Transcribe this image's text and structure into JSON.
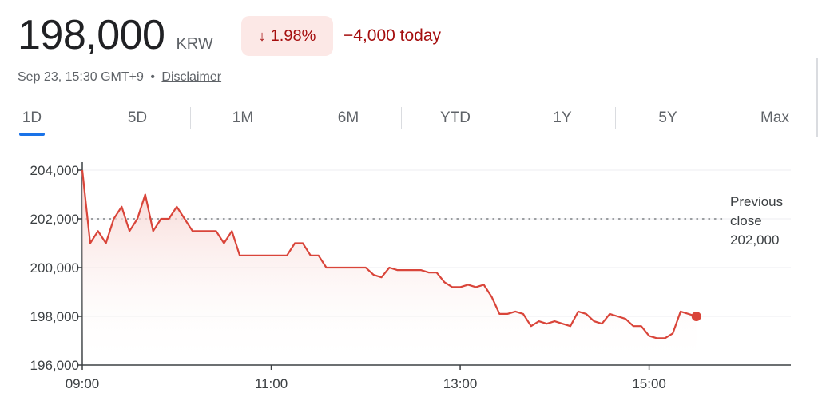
{
  "quote": {
    "price": "198,000",
    "currency": "KRW",
    "change_percent": "1.98%",
    "change_arrow": "↓",
    "change_today": "−4,000 today",
    "timestamp": "Sep 23, 15:30 GMT+9",
    "separator": "•",
    "disclaimer": "Disclaimer"
  },
  "colors": {
    "line": "#d9453a",
    "fill_top": "#f6cfcb",
    "negative_text": "#a50e0e",
    "negative_bg": "#fce8e6",
    "accent": "#1a73e8"
  },
  "tabs": [
    {
      "label": "1D",
      "active": true
    },
    {
      "label": "5D",
      "active": false
    },
    {
      "label": "1M",
      "active": false
    },
    {
      "label": "6M",
      "active": false
    },
    {
      "label": "YTD",
      "active": false
    },
    {
      "label": "1Y",
      "active": false
    },
    {
      "label": "5Y",
      "active": false
    },
    {
      "label": "Max",
      "active": false
    }
  ],
  "chart_data": {
    "type": "line",
    "ylim": [
      196000,
      204000
    ],
    "y_ticks": [
      204000,
      202000,
      200000,
      198000,
      196000
    ],
    "y_tick_labels": [
      "204,000",
      "202,000",
      "200,000",
      "198,000",
      "196,000"
    ],
    "x_range": [
      "09:00",
      "16:30"
    ],
    "x_ticks": [
      "09:00",
      "11:00",
      "13:00",
      "15:00"
    ],
    "previous_close": {
      "value": 202000,
      "label_lines": [
        "Previous",
        "close",
        "202,000"
      ]
    },
    "series": [
      {
        "x": [
          "09:00",
          "09:05",
          "09:10",
          "09:15",
          "09:20",
          "09:25",
          "09:30",
          "09:35",
          "09:40",
          "09:45",
          "09:50",
          "09:55",
          "10:00",
          "10:05",
          "10:10",
          "10:15",
          "10:20",
          "10:25",
          "10:30",
          "10:35",
          "10:40",
          "10:45",
          "10:50",
          "10:55",
          "11:00",
          "11:05",
          "11:10",
          "11:15",
          "11:20",
          "11:25",
          "11:30",
          "11:35",
          "11:40",
          "11:45",
          "11:50",
          "11:55",
          "12:00",
          "12:05",
          "12:10",
          "12:15",
          "12:20",
          "12:25",
          "12:30",
          "12:35",
          "12:40",
          "12:45",
          "12:50",
          "12:55",
          "13:00",
          "13:05",
          "13:10",
          "13:15",
          "13:20",
          "13:25",
          "13:30",
          "13:35",
          "13:40",
          "13:45",
          "13:50",
          "13:55",
          "14:00",
          "14:05",
          "14:10",
          "14:15",
          "14:20",
          "14:25",
          "14:30",
          "14:35",
          "14:40",
          "14:45",
          "14:50",
          "14:55",
          "15:00",
          "15:05",
          "15:10",
          "15:15",
          "15:20",
          "15:25",
          "15:30"
        ],
        "values": [
          204000,
          201000,
          201500,
          201000,
          202000,
          202500,
          201500,
          202000,
          203000,
          201500,
          202000,
          202000,
          202500,
          202000,
          201500,
          201500,
          201500,
          201500,
          201000,
          201500,
          200500,
          200500,
          200500,
          200500,
          200500,
          200500,
          200500,
          201000,
          201000,
          200500,
          200500,
          200000,
          200000,
          200000,
          200000,
          200000,
          200000,
          199700,
          199600,
          200000,
          199900,
          199900,
          199900,
          199900,
          199800,
          199800,
          199400,
          199200,
          199200,
          199300,
          199200,
          199300,
          198800,
          198100,
          198100,
          198200,
          198100,
          197600,
          197800,
          197700,
          197800,
          197700,
          197600,
          198200,
          198100,
          197800,
          197700,
          198100,
          198000,
          197900,
          197600,
          197600,
          197200,
          197100,
          197100,
          197300,
          198200,
          198100,
          198000
        ]
      }
    ]
  }
}
